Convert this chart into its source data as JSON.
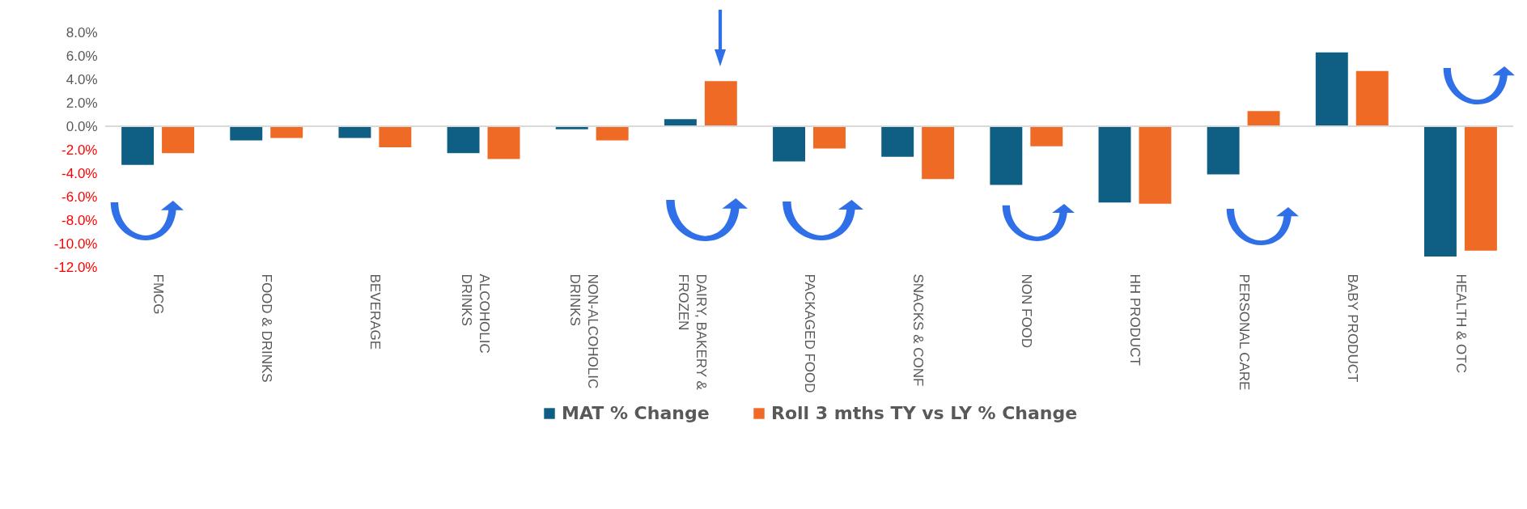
{
  "chart_data": {
    "type": "bar",
    "categories": [
      "FMCG",
      "FOOD & DRINKS",
      "BEVERAGE",
      "ALCOHOLIC DRINKS",
      "NON-ALCOHOLIC DRINKS",
      "DAIRY, BAKERY & FROZEN",
      "PACKAGED FOOD",
      "SNACKS & CONF",
      "NON FOOD",
      "HH PRODUCT",
      "PERSONAL CARE",
      "BABY PRODUCT",
      "HEALTH & OTC"
    ],
    "series": [
      {
        "name": "MAT % Change",
        "color": "#0f5f85",
        "values": [
          -3.3,
          -1.2,
          -1.0,
          -2.3,
          -0.25,
          0.6,
          -3.0,
          -2.6,
          -5.0,
          -6.5,
          -4.1,
          6.3,
          -11.1
        ]
      },
      {
        "name": "Roll 3 mths TY vs LY % Change",
        "color": "#ee6a25",
        "values": [
          -2.3,
          -1.0,
          -1.8,
          -2.8,
          -1.2,
          3.85,
          -1.9,
          -4.5,
          -1.7,
          -6.6,
          1.3,
          4.7,
          -10.6
        ]
      }
    ],
    "ylim": [
      -12,
      8
    ],
    "yticks": [
      {
        "value": 8,
        "label": "8.0%"
      },
      {
        "value": 6,
        "label": "6.0%"
      },
      {
        "value": 4,
        "label": "4.0%"
      },
      {
        "value": 2,
        "label": "2.0%"
      },
      {
        "value": 0,
        "label": "0.0%"
      },
      {
        "value": -2,
        "label": "-2.0%"
      },
      {
        "value": -4,
        "label": "-4.0%"
      },
      {
        "value": -6,
        "label": "-6.0%"
      },
      {
        "value": -8,
        "label": "-8.0%"
      },
      {
        "value": -10,
        "label": "-10.0%"
      },
      {
        "value": -12,
        "label": "-12.0%"
      }
    ],
    "ref_lines": [
      {
        "axis": "y",
        "value": 0,
        "color": "#d9d9d9"
      }
    ],
    "grid": false,
    "legend": "bottom"
  }
}
